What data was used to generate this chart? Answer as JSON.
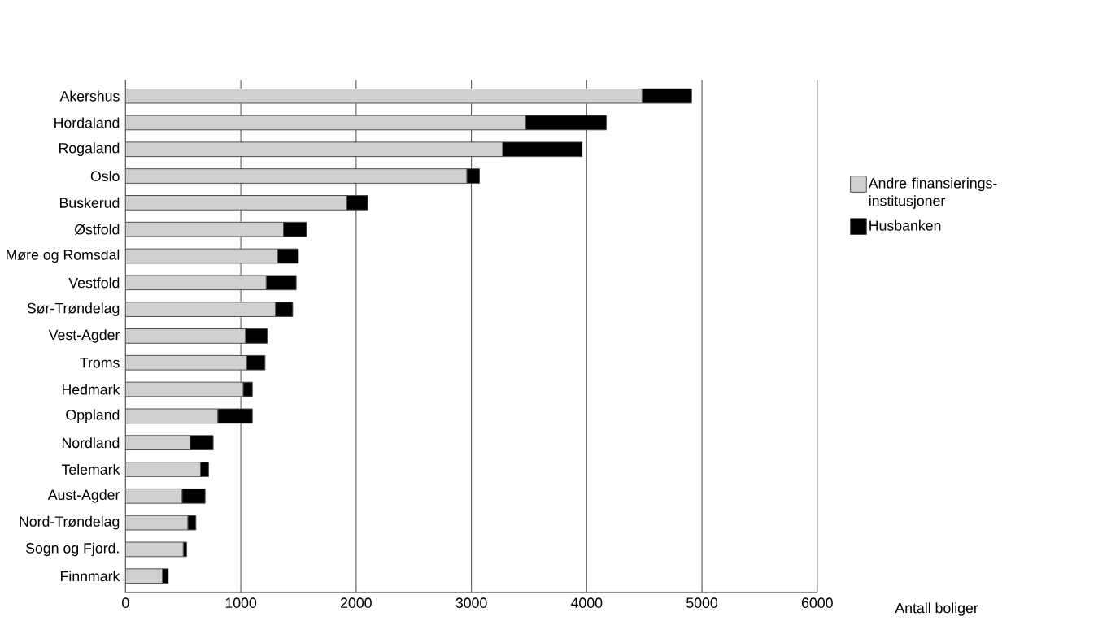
{
  "chart_data": {
    "type": "bar",
    "orientation": "horizontal",
    "stacked": true,
    "xlabel": "Antall boliger",
    "categories": [
      "Akershus",
      "Hordaland",
      "Rogaland",
      "Oslo",
      "Buskerud",
      "Østfold",
      "Møre og Romsdal",
      "Vestfold",
      "Sør-Trøndelag",
      "Vest-Agder",
      "Troms",
      "Hedmark",
      "Oppland",
      "Nordland",
      "Telemark",
      "Aust-Agder",
      "Nord-Trøndelag",
      "Sogn og Fjord.",
      "Finnmark"
    ],
    "series": [
      {
        "name": "Andre finansierings-institusjoner",
        "color": "#d0d0d0",
        "values": [
          4480,
          3470,
          3270,
          2960,
          1920,
          1370,
          1320,
          1220,
          1300,
          1040,
          1050,
          1020,
          800,
          560,
          650,
          490,
          540,
          500,
          320
        ]
      },
      {
        "name": "Husbanken",
        "color": "#000000",
        "values": [
          430,
          700,
          690,
          110,
          180,
          200,
          180,
          260,
          150,
          190,
          160,
          80,
          300,
          200,
          70,
          200,
          70,
          30,
          50
        ]
      }
    ],
    "xlim": [
      0,
      6000
    ],
    "xticks": [
      0,
      1000,
      2000,
      3000,
      4000,
      5000,
      6000
    ],
    "grid": "x",
    "legend": "right"
  }
}
